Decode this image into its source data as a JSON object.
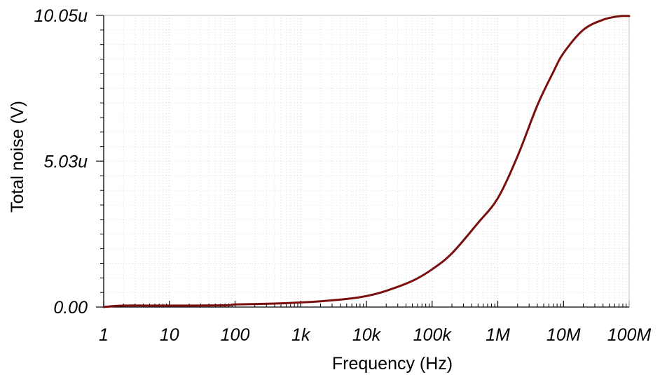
{
  "chart_data": {
    "type": "line",
    "xlabel": "Frequency (Hz)",
    "ylabel": "Total noise (V)",
    "x_scale": "log",
    "xlim": [
      1,
      100000000
    ],
    "ylim": [
      0,
      10.05
    ],
    "y_unit_multiplier": "u",
    "x_ticks": [
      {
        "value": 1,
        "label": "1"
      },
      {
        "value": 10,
        "label": "10"
      },
      {
        "value": 100,
        "label": "100"
      },
      {
        "value": 1000,
        "label": "1k"
      },
      {
        "value": 10000,
        "label": "10k"
      },
      {
        "value": 100000,
        "label": "100k"
      },
      {
        "value": 1000000,
        "label": "1M"
      },
      {
        "value": 10000000,
        "label": "10M"
      },
      {
        "value": 100000000,
        "label": "100M"
      }
    ],
    "y_ticks": [
      {
        "value": 0,
        "label": "0.00"
      },
      {
        "value": 5.03,
        "label": "5.03u"
      },
      {
        "value": 10.05,
        "label": "10.05u"
      }
    ],
    "grid": true,
    "line_color": "#7b0f0f",
    "series": [
      {
        "x": [
          1,
          2,
          10,
          70,
          100,
          400,
          1000,
          2000,
          5000,
          10000,
          20000,
          50000,
          100000,
          200000,
          500000,
          1000000,
          2000000,
          4000000,
          7000000,
          10000000,
          20000000,
          40000000,
          70000000,
          100000000
        ],
        "values": [
          0.0,
          0.05,
          0.05,
          0.06,
          0.09,
          0.12,
          0.16,
          0.2,
          0.28,
          0.38,
          0.56,
          0.9,
          1.3,
          1.85,
          2.9,
          3.75,
          5.2,
          6.95,
          8.1,
          8.75,
          9.55,
          9.9,
          10.02,
          10.03
        ]
      }
    ]
  }
}
